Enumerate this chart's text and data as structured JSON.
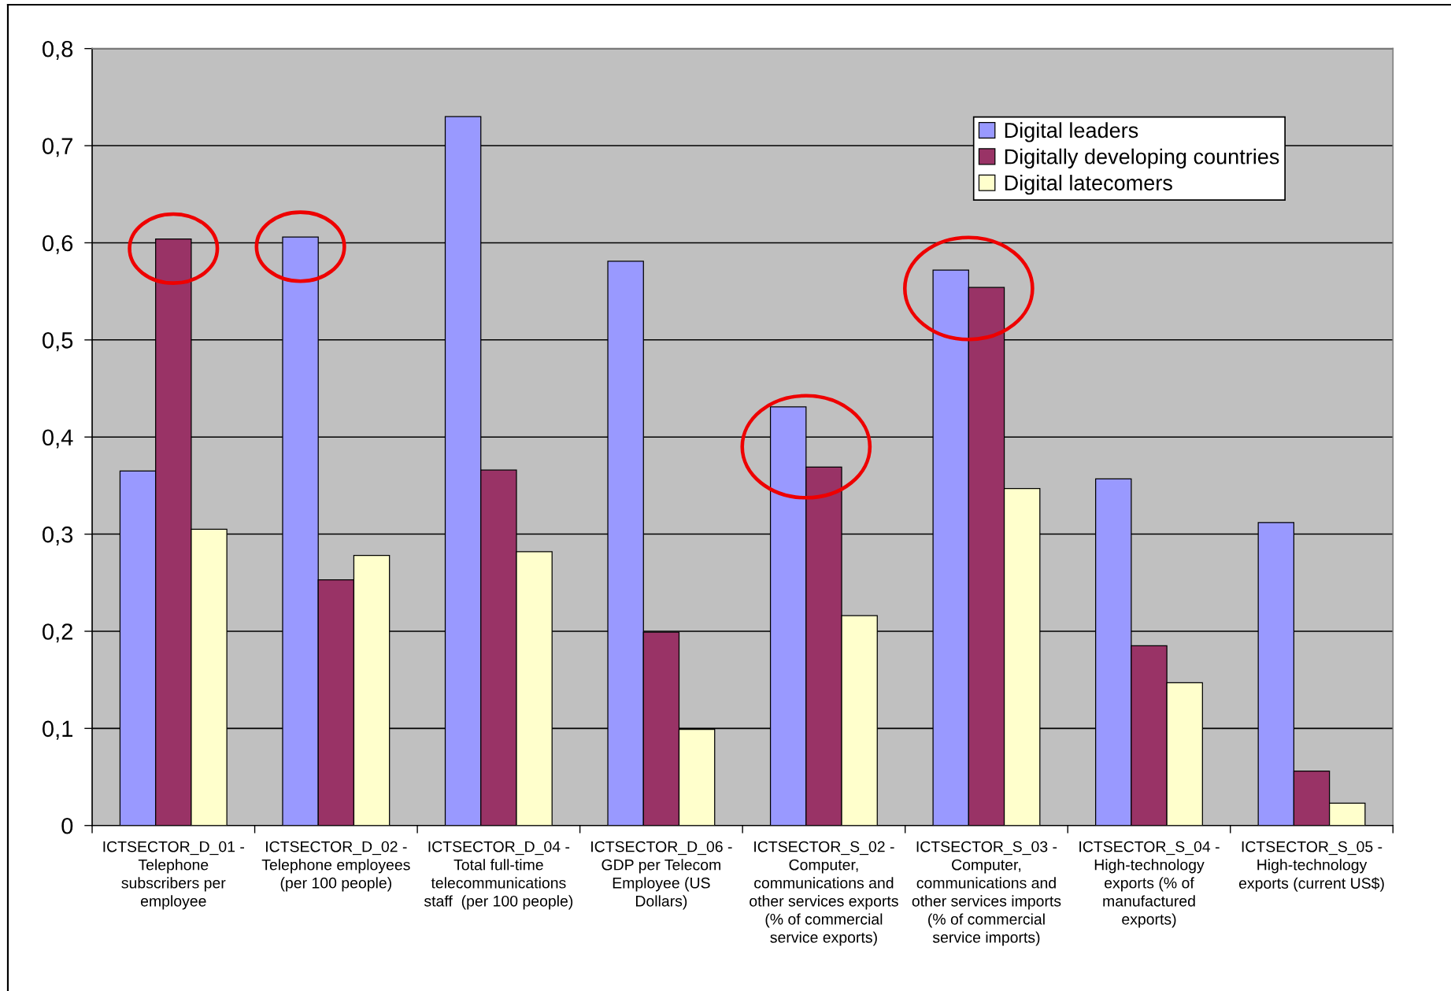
{
  "chart_data": {
    "type": "bar",
    "categories": [
      "ICTSECTOR_D_01 -\nTelephone\nsubscribers per\nemployee",
      "ICTSECTOR_D_02 -\nTelephone employees\n(per 100 people)",
      "ICTSECTOR_D_04 -\nTotal full-time\ntelecommunications\nstaff  (per 100 people)",
      "ICTSECTOR_D_06 -\nGDP per Telecom\nEmployee (US\nDollars)",
      "ICTSECTOR_S_02 -\nComputer,\ncommunications and\nother services exports\n(% of commercial\nservice exports)",
      "ICTSECTOR_S_03 -\nComputer,\ncommunications and\nother services imports\n(% of commercial\nservice imports)",
      "ICTSECTOR_S_04 -\nHigh-technology\nexports (% of\nmanufactured\nexports)",
      "ICTSECTOR_S_05 -\nHigh-technology\nexports (current US$)"
    ],
    "series": [
      {
        "name": "Digital leaders",
        "color": "#9999ff",
        "values": [
          0.365,
          0.606,
          0.73,
          0.581,
          0.431,
          0.572,
          0.357,
          0.312
        ]
      },
      {
        "name": "Digitally developing countries",
        "color": "#993366",
        "values": [
          0.604,
          0.253,
          0.366,
          0.199,
          0.369,
          0.554,
          0.185,
          0.056
        ]
      },
      {
        "name": "Digital latecomers",
        "color": "#ffffcc",
        "values": [
          0.305,
          0.278,
          0.282,
          0.099,
          0.216,
          0.347,
          0.147,
          0.023
        ]
      }
    ],
    "ylim": [
      0,
      0.8
    ],
    "yticks": [
      0,
      {
        "value": 0.1,
        "label": "0,1"
      },
      {
        "value": 0.2,
        "label": "0,2"
      },
      {
        "value": 0.3,
        "label": "0,3"
      },
      {
        "value": 0.4,
        "label": "0,4"
      },
      {
        "value": 0.5,
        "label": "0,5"
      },
      {
        "value": 0.6,
        "label": "0,6"
      },
      {
        "value": 0.7,
        "label": "0,7"
      },
      {
        "value": 0.8,
        "label": "0,8"
      }
    ],
    "grid": "y",
    "legend": "top right"
  }
}
